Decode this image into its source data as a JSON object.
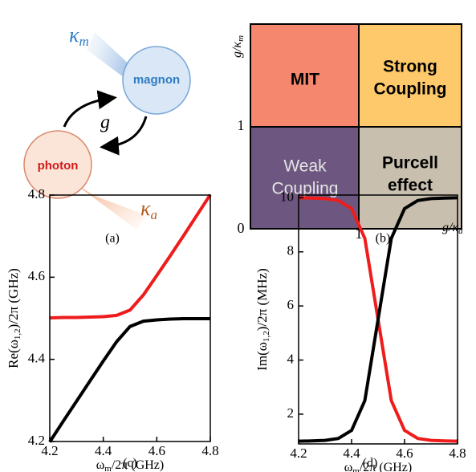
{
  "panel_a": {
    "kappa_m": {
      "symbol": "κ",
      "subscript": "m"
    },
    "magnon": "magnon",
    "g": "g",
    "photon": "photon",
    "kappa_a": {
      "symbol": "κ",
      "subscript": "a"
    },
    "caption": "(a)"
  },
  "panel_b": {
    "y_axis": {
      "symbol": "g/κ",
      "subscript": "m"
    },
    "x_axis": {
      "symbol": "g/κ",
      "subscript": "a"
    },
    "origin": "0",
    "y_one": "1",
    "x_one": "1",
    "quadrants": {
      "top_left": [
        "MIT"
      ],
      "top_right": [
        "Strong",
        "Coupling"
      ],
      "bottom_left": [
        "Weak",
        "Coupling"
      ],
      "bottom_right": [
        "Purcell",
        "effect"
      ]
    },
    "caption": "(b)"
  },
  "chart_data": [
    {
      "type": "line",
      "caption": "(c)",
      "y_label": {
        "before": "Re(ω",
        "subscript": "1,2",
        "after": ")/2π  (GHz)"
      },
      "x_label": {
        "before": "ω",
        "subscript": "m",
        "after": "/2π  (GHz)"
      },
      "x": [
        4.2,
        4.25,
        4.3,
        4.35,
        4.4,
        4.45,
        4.5,
        4.55,
        4.6,
        4.65,
        4.7,
        4.75,
        4.8
      ],
      "series": [
        {
          "color": "#ee1c1c",
          "values": [
            4.501,
            4.502,
            4.502,
            4.503,
            4.504,
            4.507,
            4.52,
            4.557,
            4.604,
            4.652,
            4.701,
            4.751,
            4.801
          ]
        },
        {
          "color": "#000000",
          "values": [
            4.199,
            4.249,
            4.298,
            4.347,
            4.396,
            4.443,
            4.48,
            4.493,
            4.496,
            4.498,
            4.499,
            4.499,
            4.499
          ]
        }
      ],
      "xlim": [
        4.2,
        4.8
      ],
      "xticks": [
        4.2,
        4.4,
        4.6,
        4.8
      ],
      "ylim": [
        4.2,
        4.8
      ],
      "yticks": [
        4.2,
        4.4,
        4.6,
        4.8
      ]
    },
    {
      "type": "line",
      "caption": "(d)",
      "y_label": {
        "before": "Im(ω",
        "subscript": "1,2",
        "after": ")/2π  (MHz)"
      },
      "x_label": {
        "before": "ω",
        "subscript": "m",
        "after": "/2π  (GHz)"
      },
      "x": [
        4.2,
        4.25,
        4.3,
        4.35,
        4.4,
        4.45,
        4.5,
        4.55,
        4.6,
        4.65,
        4.7,
        4.75,
        4.8
      ],
      "series": [
        {
          "color": "#ee1c1c",
          "values": [
            10,
            9.99,
            9.97,
            9.9,
            9.6,
            8.5,
            5.5,
            2.5,
            1.4,
            1.1,
            1.03,
            1.01,
            1.0
          ]
        },
        {
          "color": "#000000",
          "values": [
            1,
            1.01,
            1.03,
            1.1,
            1.4,
            2.5,
            5.5,
            8.5,
            9.6,
            9.9,
            9.97,
            9.99,
            10
          ]
        }
      ],
      "xlim": [
        4.2,
        4.8
      ],
      "xticks": [
        4.2,
        4.4,
        4.6,
        4.8
      ],
      "ylim": [
        0.9,
        10.1
      ],
      "yticks": [
        2,
        4,
        6,
        8,
        10
      ]
    }
  ]
}
